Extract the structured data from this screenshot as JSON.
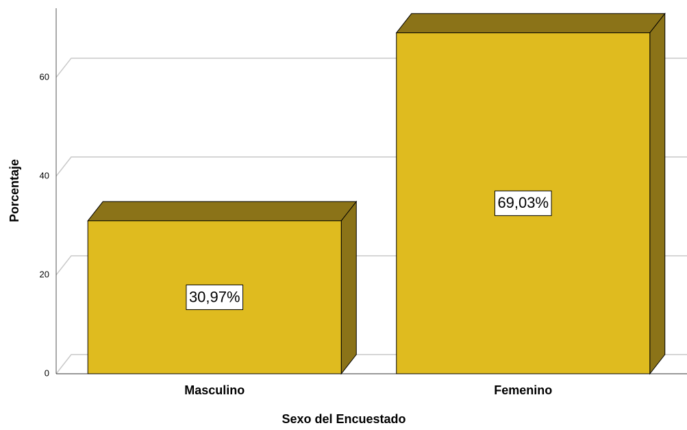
{
  "chart_data": {
    "type": "bar",
    "x_label": "Sexo del Encuestado",
    "y_label": "Porcentaje",
    "categories": [
      "Masculino",
      "Femenino"
    ],
    "values": [
      30.97,
      69.03
    ],
    "value_labels": [
      "30,97%",
      "69,03%"
    ],
    "color": "#dfbb1f",
    "shade_color": "#8b7318",
    "ylim": [
      0,
      74
    ],
    "yticks": [
      0,
      20,
      40,
      60
    ],
    "grid": true
  }
}
